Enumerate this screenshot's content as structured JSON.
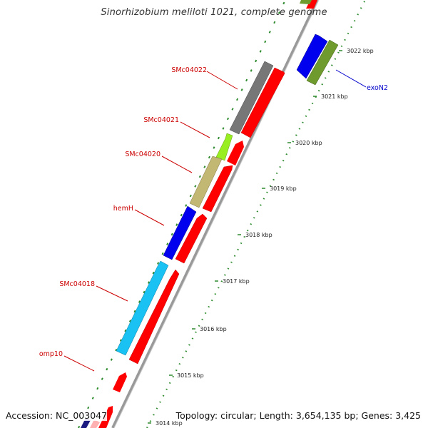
{
  "title": "Sinorhizobium meliloti 1021, complete genome",
  "accession_text": "Accession: NC_003047",
  "topology_text": "Topology: circular; Length: 3,654,135 bp; Genes: 3,425",
  "colors": {
    "backbone": "#999999",
    "tick": "#2e8b2e",
    "label_red": "#cc0000",
    "label_blue": "#0000cc",
    "red": "#ff0000",
    "blue": "#0000ee",
    "gray": "#777777",
    "lime": "#99ee22",
    "khaki": "#c2b873",
    "cyan": "#19c2f2",
    "olive": "#6f9a2e"
  },
  "scale_labels": [
    "3014 kbp",
    "3015 kbp",
    "3016 kbp",
    "3017 kbp",
    "3018 kbp",
    "3019 kbp",
    "3020 kbp",
    "3021 kbp",
    "3022 kbp"
  ],
  "gene_labels": [
    {
      "name": "SMc04022",
      "color": "label_red"
    },
    {
      "name": "SMc04021",
      "color": "label_red"
    },
    {
      "name": "SMc04020",
      "color": "label_red"
    },
    {
      "name": "hemH",
      "color": "label_red"
    },
    {
      "name": "SMc04018",
      "color": "label_red"
    },
    {
      "name": "omp10",
      "color": "label_red"
    },
    {
      "name": "exoN2",
      "color": "label_blue"
    }
  ]
}
